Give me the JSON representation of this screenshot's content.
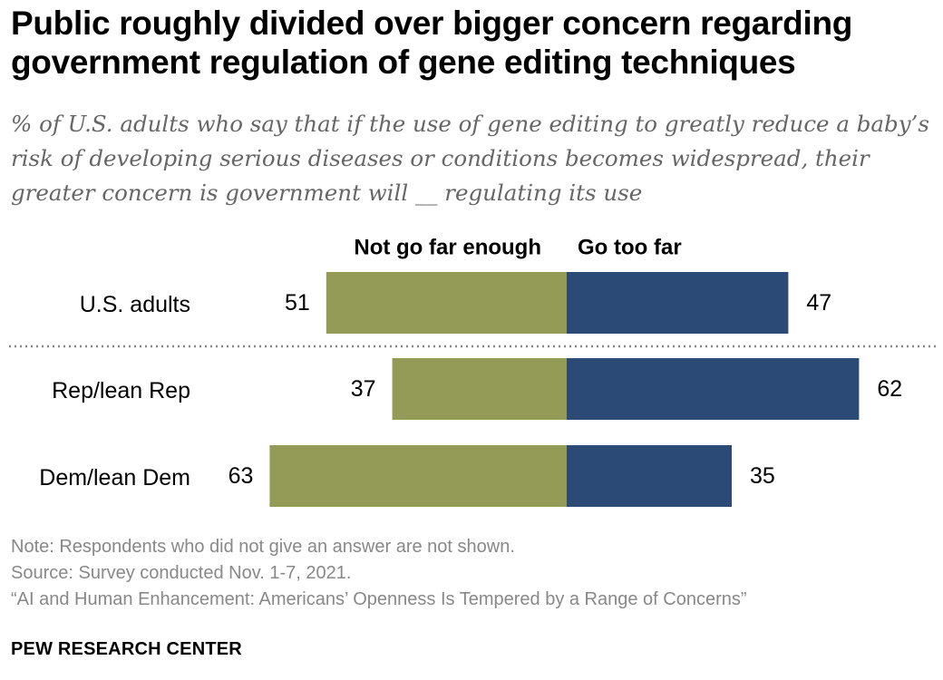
{
  "title": "Public roughly divided over bigger concern regarding government regulation of gene editing techniques",
  "subtitle": "% of U.S. adults who say that if the use of gene editing to greatly reduce a baby’s risk of developing serious diseases or conditions becomes widespread, their greater concern is government will __ regulating its use",
  "colors": {
    "not_far_enough": "#939b56",
    "too_far": "#2c4a76",
    "divider": "#888888"
  },
  "chart_data": {
    "type": "bar",
    "orientation": "horizontal-diverging",
    "categories": [
      "U.S. adults",
      "Rep/lean Rep",
      "Dem/lean Dem"
    ],
    "series": [
      {
        "name": "Not go far enough",
        "values": [
          51,
          37,
          63
        ]
      },
      {
        "name": "Go too far",
        "values": [
          47,
          62,
          35
        ]
      }
    ],
    "divider_after": "U.S. adults",
    "title": "",
    "xlabel": "",
    "ylabel": ""
  },
  "footer": {
    "note": "Note: Respondents who did not give an answer are not shown.",
    "source": "Source: Survey conducted Nov. 1-7, 2021.",
    "report": "“AI and Human Enhancement: Americans’ Openness Is Tempered by a Range of Concerns”"
  },
  "brand": "PEW RESEARCH CENTER"
}
